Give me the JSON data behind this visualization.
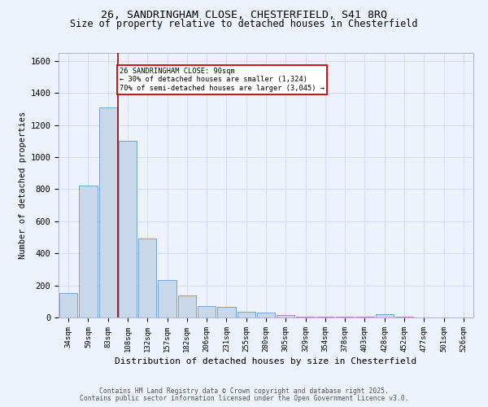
{
  "title_line1": "26, SANDRINGHAM CLOSE, CHESTERFIELD, S41 8RQ",
  "title_line2": "Size of property relative to detached houses in Chesterfield",
  "xlabel": "Distribution of detached houses by size in Chesterfield",
  "ylabel": "Number of detached properties",
  "categories": [
    "34sqm",
    "59sqm",
    "83sqm",
    "108sqm",
    "132sqm",
    "157sqm",
    "182sqm",
    "206sqm",
    "231sqm",
    "255sqm",
    "280sqm",
    "305sqm",
    "329sqm",
    "354sqm",
    "378sqm",
    "403sqm",
    "428sqm",
    "452sqm",
    "477sqm",
    "501sqm",
    "526sqm"
  ],
  "values": [
    150,
    820,
    1310,
    1100,
    490,
    235,
    135,
    70,
    65,
    38,
    28,
    15,
    3,
    5,
    5,
    3,
    18,
    3,
    0,
    0,
    0
  ],
  "bar_color": "#c8d8ea",
  "bar_edge_color": "#6699cc",
  "grid_color": "#d0d8f0",
  "red_line_color": "#aa0000",
  "annotation_text": "26 SANDRINGHAM CLOSE: 90sqm\n← 30% of detached houses are smaller (1,324)\n70% of semi-detached houses are larger (3,045) →",
  "annotation_box_color": "#ffffff",
  "annotation_box_edge": "#cc0000",
  "ylim": [
    0,
    1650
  ],
  "yticks": [
    0,
    200,
    400,
    600,
    800,
    1000,
    1200,
    1400,
    1600
  ],
  "footer_line1": "Contains HM Land Registry data © Crown copyright and database right 2025.",
  "footer_line2": "Contains public sector information licensed under the Open Government Licence v3.0.",
  "bg_color": "#eef2fc",
  "title_fontsize": 9.5,
  "subtitle_fontsize": 8.5
}
